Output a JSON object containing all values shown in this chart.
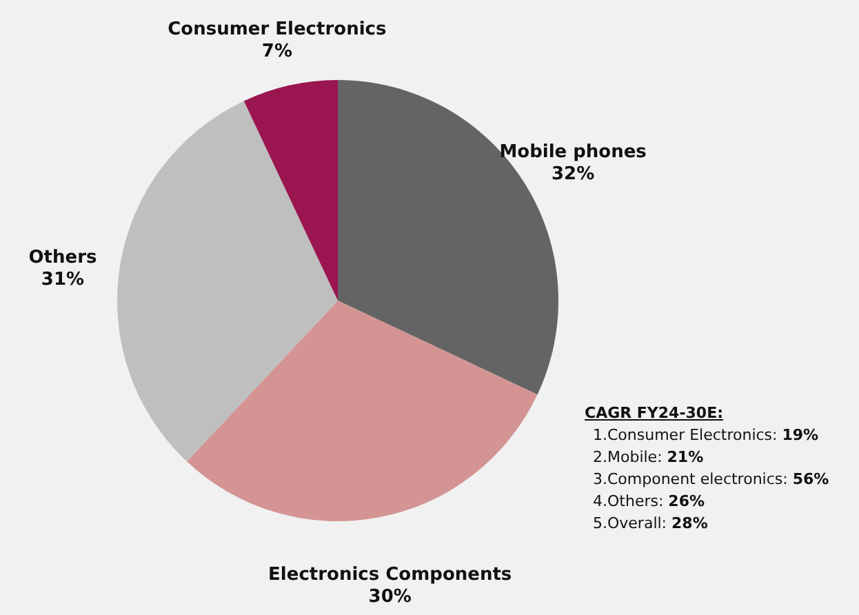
{
  "chart_data": {
    "type": "pie",
    "categories": [
      "Mobile phones",
      "Electronics Components",
      "Others",
      "Consumer Electronics"
    ],
    "values": [
      32,
      30,
      31,
      7
    ],
    "value_labels": [
      "32%",
      "30%",
      "31%",
      "7%"
    ],
    "colors": [
      "#646464",
      "#d49494",
      "#bfbfbf",
      "#9b1650"
    ],
    "annotations": [
      "CAGR FY24-30E:",
      "1.Consumer Electronics: 19%",
      "2.Mobile: 21%",
      "3.Component electronics: 56%",
      "4.Others: 26%",
      "5.Overall: 28%"
    ]
  }
}
